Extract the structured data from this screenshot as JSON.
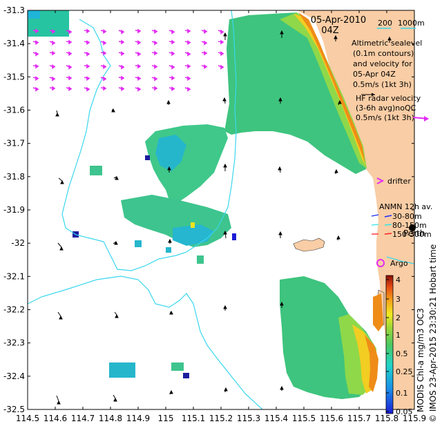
{
  "header": {
    "date": "05-Apr-2010",
    "time": "04Z"
  },
  "colors": {
    "land": "#f9cda5",
    "ocean": "#ffffff",
    "isobath": "#39d7ee",
    "hf_arrow": "#e22cf3",
    "drifter": "#e22cf3",
    "argo": "#e22cf3",
    "anmn_30_80": "#1a2bff",
    "anmn_80_150": "#2ee6e6",
    "anmn_150_300": "#ff2020"
  },
  "scale": {
    "bar_label": "200",
    "bar_label_2": "1000m"
  },
  "legend": {
    "altimetric_lines": [
      "Altimetric sealevel",
      "(0.1m contours)",
      "and velocity for",
      "05-Apr 04Z",
      "0.5m/s (1kt 3h)"
    ],
    "hf_lines": [
      "HF radar velocity",
      "(3-6h avg)noQC",
      "0.5m/s (1kt 3h)"
    ],
    "drifter": "drifter",
    "anmn_title": "ANMN 12h av.",
    "anmn_items": [
      "30-80m",
      "80-150m",
      "150-300m"
    ],
    "station": "Perth",
    "argo": "Argo"
  },
  "colorbar": {
    "ticks": [
      "4",
      "3",
      "2",
      "1",
      "0.5",
      "0.25",
      "0.1",
      "0.05"
    ],
    "label": "MODIS Chl-a mg/m3 OC3"
  },
  "credit": "© IMOS 23-Apr-2015 23:30:21 Hobart time",
  "chart_data": {
    "type": "map",
    "x_ticks": [
      "114.5",
      "114.6",
      "114.7",
      "114.8",
      "114.9",
      "115",
      "115.1",
      "115.2",
      "115.3",
      "115.4",
      "115.5",
      "115.6",
      "115.7",
      "115.8",
      "115.9"
    ],
    "y_ticks": [
      "-31.3",
      "-31.4",
      "-31.5",
      "-31.6",
      "-31.7",
      "-31.8",
      "-31.9",
      "-32",
      "-32.1",
      "-32.2",
      "-32.3",
      "-32.4",
      "-32.5"
    ],
    "xlim": [
      114.5,
      115.9
    ],
    "ylim": [
      -32.5,
      -31.3
    ]
  }
}
